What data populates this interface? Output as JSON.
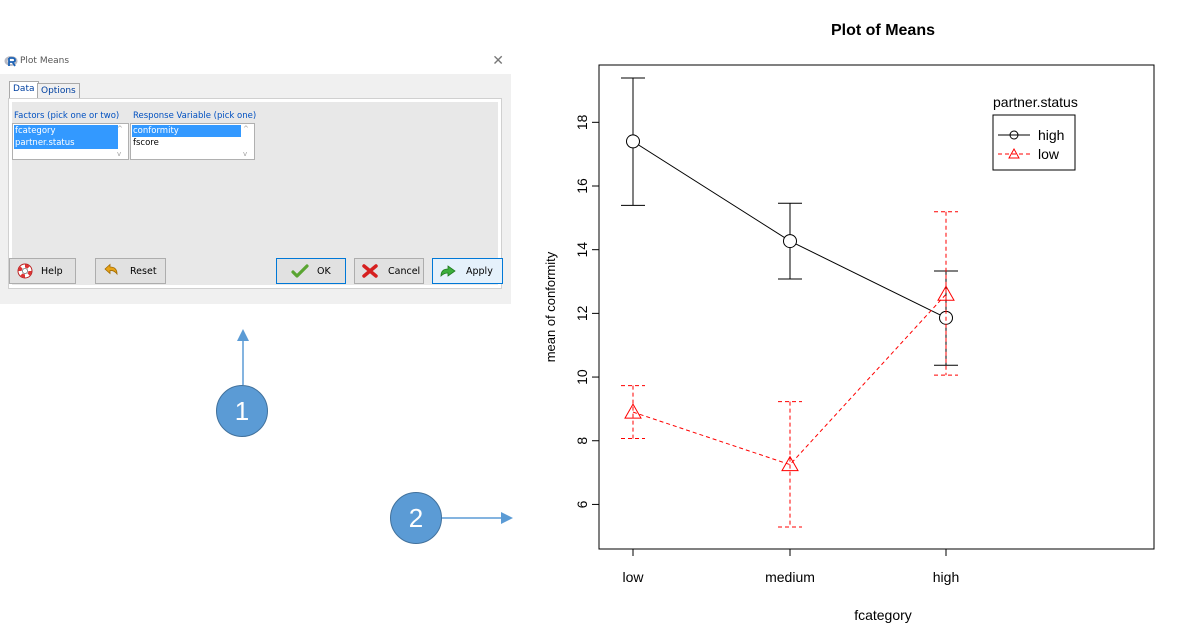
{
  "dialog": {
    "title": "Plot Means",
    "close_glyph": "✕",
    "tabs": [
      {
        "label": "Data"
      },
      {
        "label": "Options"
      }
    ],
    "factors_label": "Factors (pick one or two)",
    "factors_items": [
      "fcategory",
      "partner.status"
    ],
    "response_label": "Response Variable (pick one)",
    "response_items": [
      "conformity",
      "fscore"
    ],
    "buttons": {
      "help": "Help",
      "reset": "Reset",
      "ok": "OK",
      "cancel": "Cancel",
      "apply": "Apply"
    }
  },
  "callouts": {
    "one": "1",
    "two": "2"
  },
  "colors": {
    "high_series": "#000000",
    "low_series": "#ff0000",
    "callout_fill": "#5b9bd5"
  },
  "chart_data": {
    "type": "line",
    "title": "Plot of Means",
    "xlabel": "fcategory",
    "ylabel": "mean of conformity",
    "categories": [
      "low",
      "medium",
      "high"
    ],
    "y_ticks": [
      "6",
      "8",
      "10",
      "12",
      "14",
      "16",
      "18"
    ],
    "ylim": [
      4.6,
      19.8
    ],
    "legend_title": "partner.status",
    "legend_position": "top-right",
    "series": [
      {
        "name": "high",
        "values": [
          17.4,
          14.27,
          11.86
        ],
        "lower": [
          15.39,
          13.08,
          10.37
        ],
        "upper": [
          19.39,
          15.46,
          13.33
        ],
        "color": "#000000",
        "marker": "circle",
        "linestyle": "solid"
      },
      {
        "name": "low",
        "values": [
          8.9,
          7.25,
          12.6
        ],
        "lower": [
          8.07,
          5.29,
          10.06
        ],
        "upper": [
          9.73,
          9.23,
          15.19
        ],
        "color": "#ff0000",
        "marker": "triangle",
        "linestyle": "dashed"
      }
    ]
  }
}
